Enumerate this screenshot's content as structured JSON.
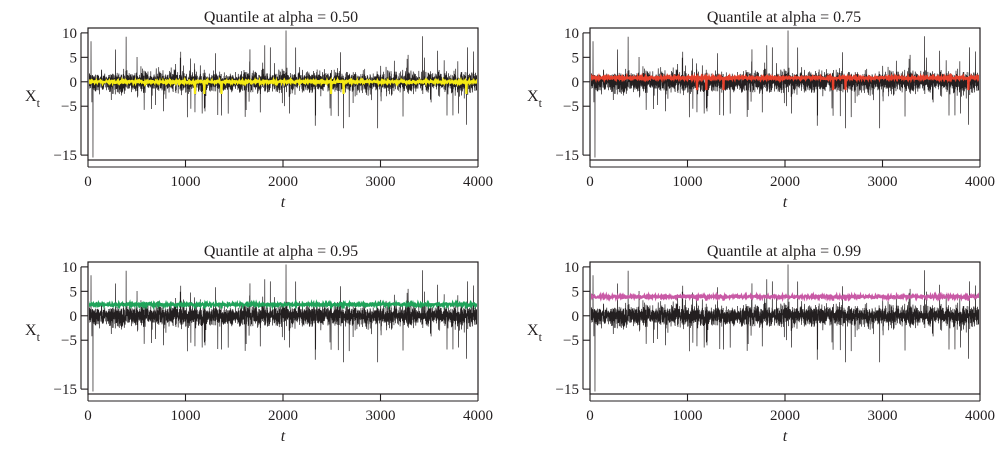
{
  "chart_data": [
    {
      "type": "line",
      "title": "Quantile at alpha = 0.50",
      "xlabel": "t",
      "ylabel": "X",
      "ylabel_subscript": "t",
      "xlim": [
        0,
        4000
      ],
      "ylim": [
        -16,
        11
      ],
      "xticks": [
        0,
        1000,
        2000,
        3000,
        4000
      ],
      "yticks": [
        10,
        5,
        0,
        -5,
        -15
      ],
      "grid": false,
      "series": [
        {
          "color": "#231f20",
          "values_summary": {
            "n": 4000,
            "min": -15.5,
            "max": 10.5
          },
          "spikes": [
            {
              "t": 30,
              "v": 8.3
            },
            {
              "t": 50,
              "v": -15.5
            },
            {
              "t": 390,
              "v": 9.2
            },
            {
              "t": 1330,
              "v": -6.8
            },
            {
              "t": 2030,
              "v": 10.5
            },
            {
              "t": 2330,
              "v": -9.0
            },
            {
              "t": 2620,
              "v": -9.5
            },
            {
              "t": 2970,
              "v": -9.5
            },
            {
              "t": 3430,
              "v": 9.3
            },
            {
              "t": 3880,
              "v": -8.8
            }
          ]
        },
        {
          "color": "#f5ea14",
          "quantile": 0.5,
          "level": 0.0
        }
      ]
    },
    {
      "type": "line",
      "title": "Quantile at alpha = 0.75",
      "xlabel": "t",
      "ylabel": "X",
      "ylabel_subscript": "t",
      "xlim": [
        0,
        4000
      ],
      "ylim": [
        -16,
        11
      ],
      "xticks": [
        0,
        1000,
        2000,
        3000,
        4000
      ],
      "yticks": [
        10,
        5,
        0,
        -5,
        -15
      ],
      "grid": false,
      "series": [
        {
          "color": "#231f20",
          "values_summary": {
            "n": 4000,
            "min": -15.5,
            "max": 10.5
          }
        },
        {
          "color": "#e8412c",
          "quantile": 0.75,
          "level": 0.8
        }
      ]
    },
    {
      "type": "line",
      "title": "Quantile at alpha = 0.95",
      "xlabel": "t",
      "ylabel": "X",
      "ylabel_subscript": "t",
      "xlim": [
        0,
        4000
      ],
      "ylim": [
        -16,
        11
      ],
      "xticks": [
        0,
        1000,
        2000,
        3000,
        4000
      ],
      "yticks": [
        10,
        5,
        0,
        -5,
        -15
      ],
      "grid": false,
      "series": [
        {
          "color": "#231f20",
          "values_summary": {
            "n": 4000,
            "min": -15.5,
            "max": 10.5
          }
        },
        {
          "color": "#1fa35a",
          "quantile": 0.95,
          "level": 2.3
        }
      ]
    },
    {
      "type": "line",
      "title": "Quantile at alpha = 0.99",
      "xlabel": "t",
      "ylabel": "X",
      "ylabel_subscript": "t",
      "xlim": [
        0,
        4000
      ],
      "ylim": [
        -16,
        11
      ],
      "xticks": [
        0,
        1000,
        2000,
        3000,
        4000
      ],
      "yticks": [
        10,
        5,
        0,
        -5,
        -15
      ],
      "grid": false,
      "series": [
        {
          "color": "#231f20",
          "values_summary": {
            "n": 4000,
            "min": -15.5,
            "max": 10.5
          }
        },
        {
          "color": "#c95aa6",
          "quantile": 0.99,
          "level": 3.9
        }
      ]
    }
  ]
}
